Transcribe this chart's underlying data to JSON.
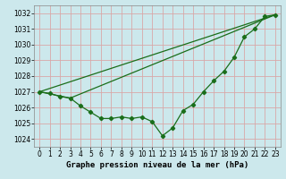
{
  "xlabel": "Graphe pression niveau de la mer (hPa)",
  "x": [
    0,
    1,
    2,
    3,
    4,
    5,
    6,
    7,
    8,
    9,
    10,
    11,
    12,
    13,
    14,
    15,
    16,
    17,
    18,
    19,
    20,
    21,
    22,
    23
  ],
  "dotted_series": [
    1027.0,
    1026.9,
    1026.7,
    1026.6,
    1026.1,
    1025.7,
    1025.3,
    1025.3,
    1025.4,
    1025.3,
    1025.4,
    1025.1,
    1024.2,
    1024.7,
    1025.8,
    1026.2,
    1027.0,
    1027.7,
    1028.3,
    1029.2,
    1030.5,
    1031.0,
    1031.8,
    1031.9
  ],
  "line1_x": [
    0,
    3,
    23
  ],
  "line1_y": [
    1027.0,
    1026.6,
    1031.9
  ],
  "line2_x": [
    0,
    23
  ],
  "line2_y": [
    1027.0,
    1031.9
  ],
  "ylim": [
    1023.5,
    1032.5
  ],
  "xlim": [
    -0.5,
    23.5
  ],
  "yticks": [
    1024,
    1025,
    1026,
    1027,
    1028,
    1029,
    1030,
    1031,
    1032
  ],
  "xticks": [
    0,
    1,
    2,
    3,
    4,
    5,
    6,
    7,
    8,
    9,
    10,
    11,
    12,
    13,
    14,
    15,
    16,
    17,
    18,
    19,
    20,
    21,
    22,
    23
  ],
  "bg_color": "#cce8ec",
  "grid_color": "#d8a8a8",
  "line_color": "#1a6e1a",
  "xlabel_fontsize": 6.5,
  "tick_fontsize": 5.5
}
